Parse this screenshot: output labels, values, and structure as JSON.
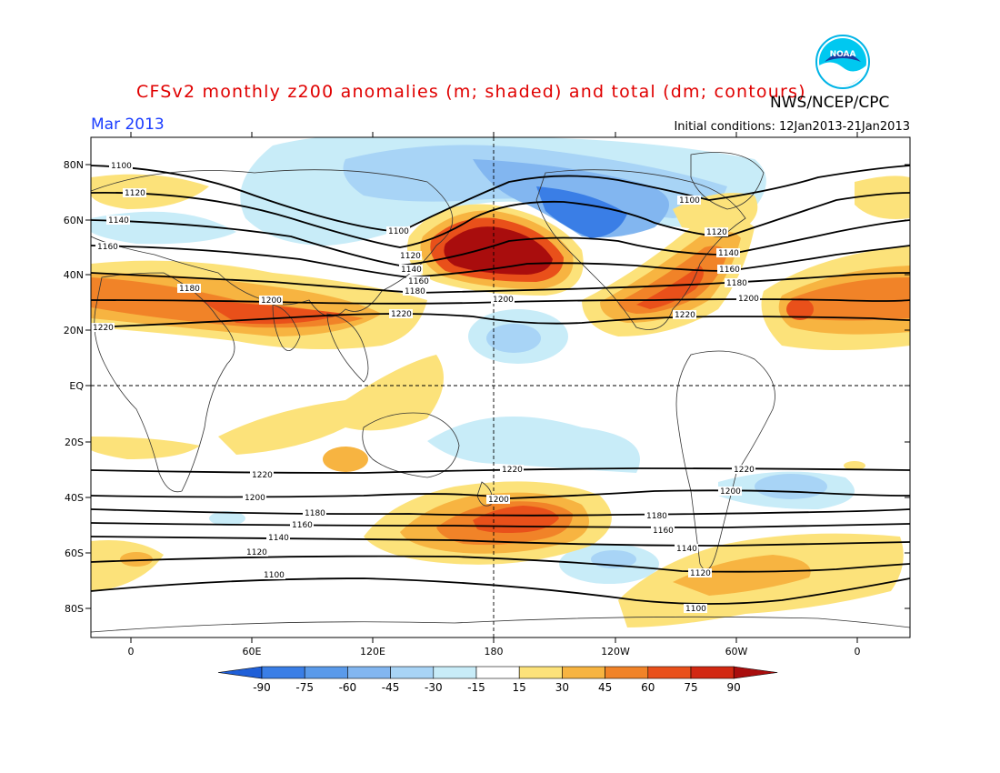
{
  "header": {
    "title": "CFSv2 monthly z200 anomalies (m; shaded) and total (dm; contours)",
    "month": "Mar 2013",
    "initial_conditions": "Initial conditions: 12Jan2013-21Jan2013",
    "organization": "NWS/NCEP/CPC",
    "logo_text": "NOAA"
  },
  "map": {
    "lat_labels": [
      "80N",
      "60N",
      "40N",
      "20N",
      "EQ",
      "20S",
      "40S",
      "60S",
      "80S"
    ],
    "lon_labels": [
      "0",
      "60E",
      "120E",
      "180",
      "120W",
      "60W",
      "0"
    ],
    "contour_labels": [
      "1100",
      "1120",
      "1140",
      "1160",
      "1180",
      "1200",
      "1220"
    ]
  },
  "colorbar": {
    "ticks": [
      "-90",
      "-75",
      "-60",
      "-45",
      "-30",
      "-15",
      "15",
      "30",
      "45",
      "60",
      "75",
      "90"
    ],
    "colors": [
      "#1f5fd8",
      "#3a7ee6",
      "#5a9aea",
      "#82b6f0",
      "#a8d4f6",
      "#c8ecf8",
      "#ffffff",
      "#fce27a",
      "#f7b441",
      "#f18328",
      "#e9501a",
      "#d22812",
      "#a90d0d"
    ]
  },
  "colors": {
    "title": "#e00000",
    "month": "#1a3cff",
    "dashed_grid": "#000000"
  }
}
